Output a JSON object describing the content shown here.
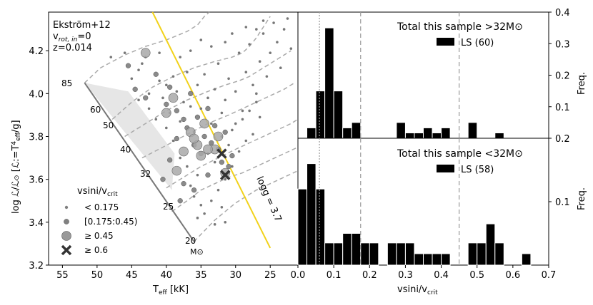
{
  "chart_data": [
    {
      "type": "scatter",
      "name": "sHRD",
      "xlabel": "T_eff [kK]",
      "ylabel": "log ℒ/ℒ⊙ [ℒ:=T_eff^4/g]",
      "xlim": [
        57,
        21
      ],
      "ylim": [
        3.2,
        4.38
      ],
      "xticks": [
        "55",
        "50",
        "45",
        "40",
        "35",
        "30",
        "25"
      ],
      "yticks": [
        "3.2",
        "3.4",
        "3.6",
        "3.8",
        "4.0",
        "4.2"
      ],
      "model_info": [
        "Ekström+12",
        "v_rot,in=0",
        "z=0.014"
      ],
      "mass_labels": [
        "85",
        "60",
        "50",
        "40",
        "32",
        "25",
        "20",
        "M⊙"
      ],
      "zams_line": [
        [
          51.8,
          4.05
        ],
        [
          36.0,
          3.31
        ]
      ],
      "logg_line": {
        "label": "logg = 3.7",
        "color": "#f2d21b",
        "points": [
          [
            42.0,
            4.4
          ],
          [
            25.0,
            3.28
          ]
        ]
      },
      "shaded_region": [
        [
          51.8,
          4.05
        ],
        [
          45.5,
          4.01
        ],
        [
          38.8,
          3.72
        ],
        [
          39.2,
          3.55
        ]
      ],
      "tracks": [
        [
          [
            51.8,
            4.05
          ],
          [
            49.5,
            4.12
          ],
          [
            46.0,
            4.18
          ],
          [
            43.0,
            4.22
          ],
          [
            40.0,
            4.25
          ],
          [
            37.0,
            4.29
          ],
          [
            35.5,
            4.32
          ],
          [
            34.5,
            4.36
          ],
          [
            33.8,
            4.4
          ]
        ],
        [
          [
            47.8,
            3.88
          ],
          [
            45.0,
            3.96
          ],
          [
            42.0,
            4.03
          ],
          [
            39.0,
            4.08
          ],
          [
            36.0,
            4.12
          ],
          [
            33.0,
            4.15
          ],
          [
            30.5,
            4.17
          ],
          [
            29.0,
            4.19
          ],
          [
            28.0,
            4.22
          ],
          [
            27.0,
            4.26
          ],
          [
            26.0,
            4.31
          ],
          [
            25.0,
            4.36
          ]
        ],
        [
          [
            46.0,
            3.8
          ],
          [
            43.0,
            3.86
          ],
          [
            40.0,
            3.92
          ],
          [
            37.0,
            3.97
          ],
          [
            34.0,
            4.01
          ],
          [
            31.5,
            4.04
          ],
          [
            29.5,
            4.06
          ],
          [
            28.0,
            4.08
          ],
          [
            27.0,
            4.1
          ],
          [
            25.5,
            4.13
          ],
          [
            24.0,
            4.16
          ],
          [
            22.0,
            4.2
          ]
        ],
        [
          [
            43.5,
            3.7
          ],
          [
            40.5,
            3.75
          ],
          [
            37.0,
            3.81
          ],
          [
            34.0,
            3.86
          ],
          [
            31.0,
            3.9
          ],
          [
            29.0,
            3.93
          ],
          [
            27.0,
            3.96
          ],
          [
            25.0,
            3.99
          ],
          [
            23.0,
            4.02
          ],
          [
            21.5,
            4.05
          ]
        ],
        [
          [
            40.0,
            3.56
          ],
          [
            37.5,
            3.61
          ],
          [
            35.0,
            3.66
          ],
          [
            32.5,
            3.7
          ],
          [
            30.0,
            3.74
          ],
          [
            28.0,
            3.77
          ],
          [
            26.0,
            3.8
          ],
          [
            24.0,
            3.83
          ],
          [
            22.0,
            3.86
          ],
          [
            21.0,
            3.88
          ]
        ],
        [
          [
            39.2,
            3.45
          ],
          [
            37.0,
            3.5
          ],
          [
            35.0,
            3.55
          ],
          [
            33.0,
            3.58
          ],
          [
            31.0,
            3.61
          ],
          [
            29.0,
            3.63
          ],
          [
            27.0,
            3.66
          ],
          [
            25.0,
            3.69
          ],
          [
            23.0,
            3.72
          ],
          [
            21.0,
            3.75
          ]
        ],
        [
          [
            36.0,
            3.31
          ],
          [
            34.5,
            3.36
          ],
          [
            33.0,
            3.41
          ],
          [
            31.5,
            3.45
          ],
          [
            30.0,
            3.49
          ],
          [
            28.5,
            3.52
          ],
          [
            27.0,
            3.55
          ],
          [
            25.0,
            3.58
          ],
          [
            23.0,
            3.61
          ],
          [
            21.0,
            3.64
          ]
        ]
      ],
      "legend_title": "vsini/v_crit",
      "legend": [
        "< 0.175",
        "[0.175:0.45)",
        "≥  0.45",
        "≥  0.6"
      ],
      "points_small": [
        [
          44.0,
          4.11
        ],
        [
          45.0,
          4.07
        ],
        [
          43.5,
          4.14
        ],
        [
          42.5,
          4.0
        ],
        [
          41.0,
          4.06
        ],
        [
          40.5,
          3.98
        ],
        [
          40.0,
          4.04
        ],
        [
          39.5,
          3.91
        ],
        [
          39.0,
          4.08
        ],
        [
          38.5,
          4.01
        ],
        [
          38.0,
          3.87
        ],
        [
          37.5,
          3.96
        ],
        [
          37.0,
          4.1
        ],
        [
          36.5,
          3.94
        ],
        [
          36.0,
          3.82
        ],
        [
          35.5,
          4.04
        ],
        [
          35.0,
          3.93
        ],
        [
          34.5,
          4.09
        ],
        [
          34.0,
          3.98
        ],
        [
          33.5,
          3.86
        ],
        [
          33.0,
          4.02
        ],
        [
          32.5,
          4.14
        ],
        [
          32.0,
          3.91
        ],
        [
          31.5,
          3.97
        ],
        [
          31.0,
          4.07
        ],
        [
          30.5,
          3.83
        ],
        [
          30.0,
          4.01
        ],
        [
          29.5,
          4.19
        ],
        [
          29.0,
          3.92
        ],
        [
          28.5,
          4.1
        ],
        [
          28.0,
          4.23
        ],
        [
          27.5,
          4.04
        ],
        [
          27.0,
          3.96
        ],
        [
          26.5,
          4.15
        ],
        [
          26.0,
          4.28
        ],
        [
          25.5,
          4.08
        ],
        [
          25.0,
          4.19
        ],
        [
          24.5,
          4.33
        ],
        [
          24.0,
          4.24
        ],
        [
          23.5,
          4.12
        ],
        [
          23.0,
          4.3
        ],
        [
          22.5,
          4.35
        ],
        [
          22.0,
          4.21
        ],
        [
          26.0,
          4.34
        ],
        [
          27.0,
          4.3
        ],
        [
          28.5,
          4.31
        ],
        [
          30.5,
          4.28
        ],
        [
          31.5,
          4.24
        ],
        [
          33.5,
          4.22
        ],
        [
          35.0,
          4.25
        ],
        [
          36.5,
          4.2
        ],
        [
          38.0,
          4.17
        ],
        [
          41.0,
          4.19
        ],
        [
          43.0,
          4.17
        ],
        [
          46.0,
          4.19
        ],
        [
          48.0,
          4.17
        ],
        [
          34.0,
          3.72
        ],
        [
          33.0,
          3.68
        ],
        [
          32.5,
          3.55
        ],
        [
          31.5,
          3.6
        ],
        [
          30.5,
          3.66
        ],
        [
          29.5,
          3.73
        ],
        [
          28.5,
          3.78
        ],
        [
          27.5,
          3.81
        ],
        [
          26.5,
          3.89
        ],
        [
          35.5,
          3.62
        ],
        [
          36.0,
          3.52
        ],
        [
          35.0,
          3.48
        ],
        [
          33.5,
          3.5
        ],
        [
          34.5,
          3.44
        ],
        [
          32.0,
          3.47
        ],
        [
          31.5,
          3.4
        ],
        [
          33.0,
          3.39
        ],
        [
          35.5,
          3.42
        ],
        [
          36.5,
          3.57
        ],
        [
          37.0,
          3.66
        ],
        [
          38.0,
          3.7
        ],
        [
          39.0,
          3.78
        ],
        [
          40.0,
          3.84
        ],
        [
          41.5,
          3.88
        ],
        [
          42.5,
          3.93
        ],
        [
          44.0,
          3.97
        ],
        [
          30.0,
          3.86
        ],
        [
          29.0,
          3.88
        ],
        [
          28.0,
          3.92
        ],
        [
          27.0,
          4.0
        ],
        [
          32.0,
          3.8
        ],
        [
          31.0,
          3.76
        ]
      ],
      "points_medium": [
        [
          45.5,
          4.13
        ],
        [
          44.5,
          4.02
        ],
        [
          43.0,
          3.98
        ],
        [
          41.5,
          4.09
        ],
        [
          40.0,
          3.95
        ],
        [
          39.5,
          4.03
        ],
        [
          38.5,
          3.92
        ],
        [
          37.5,
          3.88
        ],
        [
          37.0,
          3.84
        ],
        [
          36.5,
          4.0
        ],
        [
          36.0,
          3.76
        ],
        [
          35.5,
          3.89
        ],
        [
          35.0,
          3.72
        ],
        [
          34.5,
          3.8
        ],
        [
          34.0,
          3.93
        ],
        [
          33.5,
          3.77
        ],
        [
          33.0,
          3.85
        ],
        [
          32.5,
          3.74
        ],
        [
          32.0,
          3.68
        ],
        [
          31.5,
          3.82
        ],
        [
          30.5,
          3.71
        ],
        [
          38.5,
          3.79
        ],
        [
          39.5,
          3.69
        ],
        [
          40.5,
          3.6
        ],
        [
          37.5,
          3.58
        ],
        [
          38.0,
          3.5
        ],
        [
          34.0,
          3.62
        ],
        [
          36.0,
          3.55
        ],
        [
          31.0,
          3.66
        ]
      ],
      "points_large": [
        [
          43.0,
          4.19
        ],
        [
          39.0,
          3.98
        ],
        [
          37.5,
          3.73
        ],
        [
          36.5,
          3.82
        ],
        [
          35.5,
          3.76
        ],
        [
          35.0,
          3.71
        ],
        [
          34.5,
          3.86
        ],
        [
          33.0,
          3.74
        ],
        [
          34.0,
          3.74
        ],
        [
          38.5,
          3.64
        ],
        [
          36.0,
          3.79
        ],
        [
          40.0,
          3.91
        ],
        [
          32.5,
          3.8
        ],
        [
          31.5,
          3.63
        ]
      ],
      "points_cross": [
        [
          32.0,
          3.72
        ],
        [
          31.5,
          3.62
        ]
      ]
    },
    {
      "type": "bar",
      "name": "histogram-high-mass",
      "title": "Total this sample >32M⊙",
      "legend": "LS (60)",
      "ylabel": "Freq.",
      "ylim": [
        0,
        0.4
      ],
      "yticks": [
        "0.1",
        "0.2",
        "0.3",
        "0.4"
      ],
      "bin_width": 0.025,
      "bin_starts": [
        0.0,
        0.025,
        0.05,
        0.075,
        0.1,
        0.125,
        0.15,
        0.175,
        0.2,
        0.225,
        0.25,
        0.275,
        0.3,
        0.325,
        0.35,
        0.375,
        0.4,
        0.425,
        0.45,
        0.475,
        0.5,
        0.525,
        0.55,
        0.575,
        0.6,
        0.625,
        0.65,
        0.675
      ],
      "values": [
        0.0,
        0.033,
        0.15,
        0.35,
        0.15,
        0.033,
        0.05,
        0.0,
        0.0,
        0.0,
        0.0,
        0.05,
        0.017,
        0.017,
        0.033,
        0.017,
        0.033,
        0.0,
        0.0,
        0.05,
        0.0,
        0.0,
        0.017,
        0.0,
        0.0,
        0.0,
        0.0,
        0.0
      ],
      "vlines": [
        0.06,
        0.175,
        0.45
      ]
    },
    {
      "type": "bar",
      "name": "histogram-low-mass",
      "title": "Total this sample <32M⊙",
      "legend": "LS (58)",
      "ylabel": "Freq.",
      "ylim": [
        0,
        0.2
      ],
      "yticks": [
        "0.1",
        "0.2"
      ],
      "bin_width": 0.025,
      "bin_starts": [
        0.0,
        0.025,
        0.05,
        0.075,
        0.1,
        0.125,
        0.15,
        0.175,
        0.2,
        0.225,
        0.25,
        0.275,
        0.3,
        0.325,
        0.35,
        0.375,
        0.4,
        0.425,
        0.45,
        0.475,
        0.5,
        0.525,
        0.55,
        0.575,
        0.6,
        0.625,
        0.65,
        0.675
      ],
      "values": [
        0.12,
        0.16,
        0.12,
        0.035,
        0.035,
        0.05,
        0.05,
        0.035,
        0.035,
        0.0,
        0.035,
        0.035,
        0.035,
        0.018,
        0.018,
        0.018,
        0.018,
        0.0,
        0.0,
        0.035,
        0.035,
        0.065,
        0.035,
        0.0,
        0.0,
        0.018,
        0.0,
        0.0
      ],
      "vlines": [
        0.06,
        0.175,
        0.45
      ]
    }
  ],
  "shared_x": {
    "xlabel": "vsini/v_crit",
    "xlim": [
      0.0,
      0.7
    ],
    "xticks": [
      "0.0",
      "0.1",
      "0.2",
      "0.3",
      "0.4",
      "0.5",
      "0.6",
      "0.7"
    ]
  }
}
